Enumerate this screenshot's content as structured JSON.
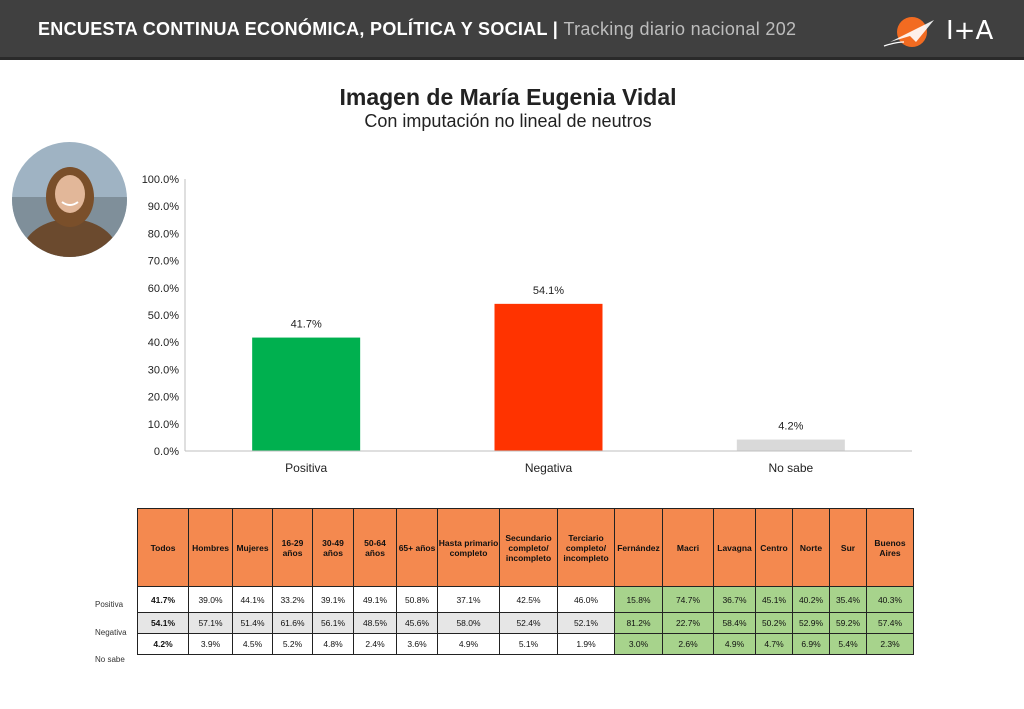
{
  "header": {
    "title": "ENCUESTA CONTINUA ECONÓMICA, POLÍTICA Y SOCIAL |",
    "subtitle": "Tracking diario nacional 202",
    "logo_text": "I+A"
  },
  "colors": {
    "positiva": "#00b04f",
    "negativa": "#ff3300",
    "no_sabe": "#d9d9d9",
    "table_header": "#f4894f",
    "table_green": "#a7d38c",
    "header_bg": "#404040"
  },
  "chart_data": {
    "type": "bar",
    "title": "Imagen de María Eugenia Vidal",
    "subtitle": "Con imputación no lineal de neutros",
    "categories": [
      "Positiva",
      "Negativa",
      "No sabe"
    ],
    "values": [
      41.7,
      54.1,
      4.2
    ],
    "value_labels": [
      "41.7%",
      "54.1%",
      "4.2%"
    ],
    "ylim": [
      0,
      100
    ],
    "yticks": [
      "0.0%",
      "10.0%",
      "20.0%",
      "30.0%",
      "40.0%",
      "50.0%",
      "60.0%",
      "70.0%",
      "80.0%",
      "90.0%",
      "100.0%"
    ],
    "grid": false,
    "legend": "none"
  },
  "table": {
    "headers": [
      "Todos",
      "Hombres",
      "Mujeres",
      "16-29 años",
      "30-49 años",
      "50-64 años",
      "65+ años",
      "Hasta primario completo",
      "Secundario completo/ incompleto",
      "Terciario completo/ incompleto",
      "Fernández",
      "Macri",
      "Lavagna",
      "Centro",
      "Norte",
      "Sur",
      "Buenos Aires"
    ],
    "rows": [
      {
        "label": "Positiva",
        "cells": [
          "41.7%",
          "39.0%",
          "44.1%",
          "33.2%",
          "39.1%",
          "49.1%",
          "50.8%",
          "37.1%",
          "42.5%",
          "46.0%",
          "15.8%",
          "74.7%",
          "36.7%",
          "45.1%",
          "40.2%",
          "35.4%",
          "40.3%"
        ]
      },
      {
        "label": "Negativa",
        "cells": [
          "54.1%",
          "57.1%",
          "51.4%",
          "61.6%",
          "56.1%",
          "48.5%",
          "45.6%",
          "58.0%",
          "52.4%",
          "52.1%",
          "81.2%",
          "22.7%",
          "58.4%",
          "50.2%",
          "52.9%",
          "59.2%",
          "57.4%"
        ]
      },
      {
        "label": "No sabe",
        "cells": [
          "4.2%",
          "3.9%",
          "4.5%",
          "5.2%",
          "4.8%",
          "2.4%",
          "3.6%",
          "4.9%",
          "5.1%",
          "1.9%",
          "3.0%",
          "2.6%",
          "4.9%",
          "4.7%",
          "6.9%",
          "5.4%",
          "2.3%"
        ]
      }
    ]
  }
}
